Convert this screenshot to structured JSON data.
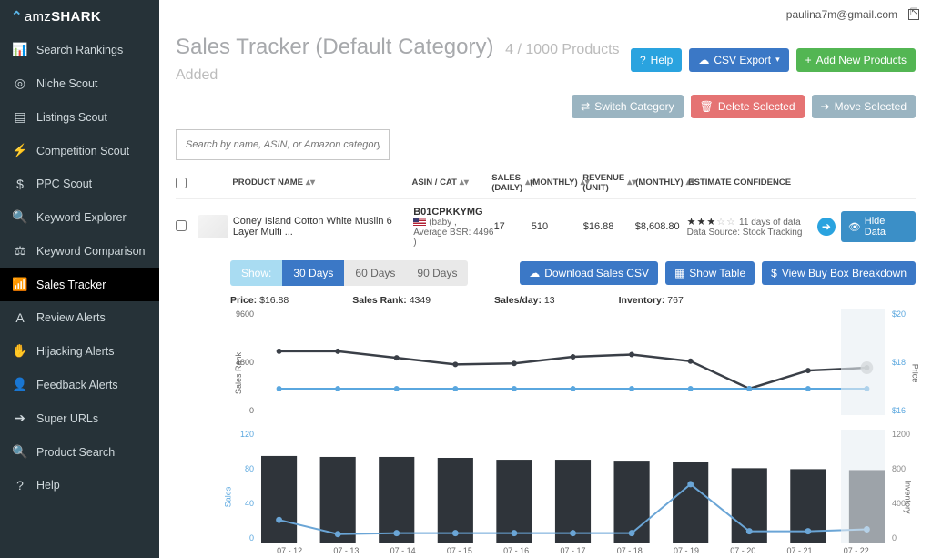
{
  "brand": {
    "first": "amz",
    "second": "SHARK"
  },
  "user_email": "paulina7m@gmail.com",
  "sidebar": {
    "items": [
      {
        "label": "Search Rankings",
        "icon": "chart"
      },
      {
        "label": "Niche Scout",
        "icon": "target"
      },
      {
        "label": "Listings Scout",
        "icon": "list"
      },
      {
        "label": "Competition Scout",
        "icon": "bolt"
      },
      {
        "label": "PPC Scout",
        "icon": "dollar"
      },
      {
        "label": "Keyword Explorer",
        "icon": "search"
      },
      {
        "label": "Keyword Comparison",
        "icon": "scales"
      },
      {
        "label": "Sales Tracker",
        "icon": "bars",
        "active": true
      },
      {
        "label": "Review Alerts",
        "icon": "A"
      },
      {
        "label": "Hijacking Alerts",
        "icon": "hand"
      },
      {
        "label": "Feedback Alerts",
        "icon": "user"
      },
      {
        "label": "Super URLs",
        "icon": "arrow"
      },
      {
        "label": "Product Search",
        "icon": "search"
      },
      {
        "label": "Help",
        "icon": "help"
      }
    ]
  },
  "page": {
    "title": "Sales Tracker (Default Category)",
    "subtitle": "4 / 1000 Products Added",
    "buttons": {
      "help": "Help",
      "csv": "CSV Export",
      "add": "Add New Products",
      "switch": "Switch Category",
      "delete": "Delete Selected",
      "move": "Move Selected"
    },
    "search_placeholder": "Search by name, ASIN, or Amazon category..."
  },
  "table": {
    "headers": {
      "name": "PRODUCT NAME",
      "asin": "ASIN / CAT",
      "sd": "SALES (DAILY)",
      "sm": "(MONTHLY)",
      "ru": "REVENUE (UNIT)",
      "rm": "(MONTHLY)",
      "conf": "ESTIMATE CONFIDENCE"
    },
    "row": {
      "name": "Coney Island Cotton White Muslin 6 Layer Multi ...",
      "asin": "B01CPKKYMG",
      "cat": "(baby ,",
      "bsr": "Average BSR: 4496 )",
      "sales_daily": "17",
      "sales_monthly": "510",
      "rev_unit": "$16.88",
      "rev_monthly": "$8,608.80",
      "stars_full": 3,
      "stars_empty": 2,
      "days": "11 days of data",
      "source": "Data Source: Stock Tracking",
      "hide": "Hide Data"
    }
  },
  "detail": {
    "show": "Show:",
    "ranges": [
      "30 Days",
      "60 Days",
      "90 Days"
    ],
    "active_range": 0,
    "actions": {
      "dl": "Download Sales CSV",
      "showtbl": "Show Table",
      "buybox": "View Buy Box Breakdown"
    },
    "kv": {
      "price_l": "Price:",
      "price_v": "$16.88",
      "rank_l": "Sales Rank:",
      "rank_v": "4349",
      "spd_l": "Sales/day:",
      "spd_v": "13",
      "inv_l": "Inventory:",
      "inv_v": "767"
    }
  },
  "chart_top": {
    "structure": "dual-axis line",
    "y_left_label": "Sales Rank",
    "y_right_label": "Price",
    "y_left_ticks": [
      "9600",
      "4800",
      "0"
    ],
    "y_right_ticks": [
      "$20",
      "$18",
      "$16"
    ],
    "rank_color": "#3a3f47",
    "price_color": "#5aa7df",
    "highlight_bg": "#e8eef4",
    "x": [
      "07 - 12",
      "07 - 13",
      "07 - 14",
      "07 - 15",
      "07 - 16",
      "07 - 17",
      "07 - 18",
      "07 - 19",
      "07 - 20",
      "07 - 21",
      "07 - 22"
    ],
    "rank": [
      5800,
      5800,
      5200,
      4600,
      4700,
      5300,
      5500,
      4900,
      2400,
      4050,
      4300
    ],
    "price": [
      17,
      17,
      17,
      17,
      17,
      17,
      17,
      17,
      17,
      17,
      17
    ]
  },
  "chart_bottom": {
    "structure": "bar + line overlay",
    "y_left_label": "Sales",
    "y_right_label": "Inventory",
    "y_left_ticks": [
      "120",
      "80",
      "40",
      "0"
    ],
    "y_right_ticks": [
      "1200",
      "800",
      "400",
      "0"
    ],
    "bar_color": "#2f343a",
    "line_color": "#6aa5d6",
    "y_left_color": "#5aa7df",
    "y_right_color": "#888",
    "x": [
      "07 - 12",
      "07 - 13",
      "07 - 14",
      "07 - 15",
      "07 - 16",
      "07 - 17",
      "07 - 18",
      "07 - 19",
      "07 - 20",
      "07 - 21",
      "07 - 22"
    ],
    "sales_bars": [
      92,
      91,
      91,
      90,
      88,
      88,
      87,
      86,
      79,
      78,
      77
    ],
    "inventory_line": [
      24,
      9,
      10,
      10,
      10,
      10,
      10,
      62,
      12,
      12,
      14
    ]
  }
}
